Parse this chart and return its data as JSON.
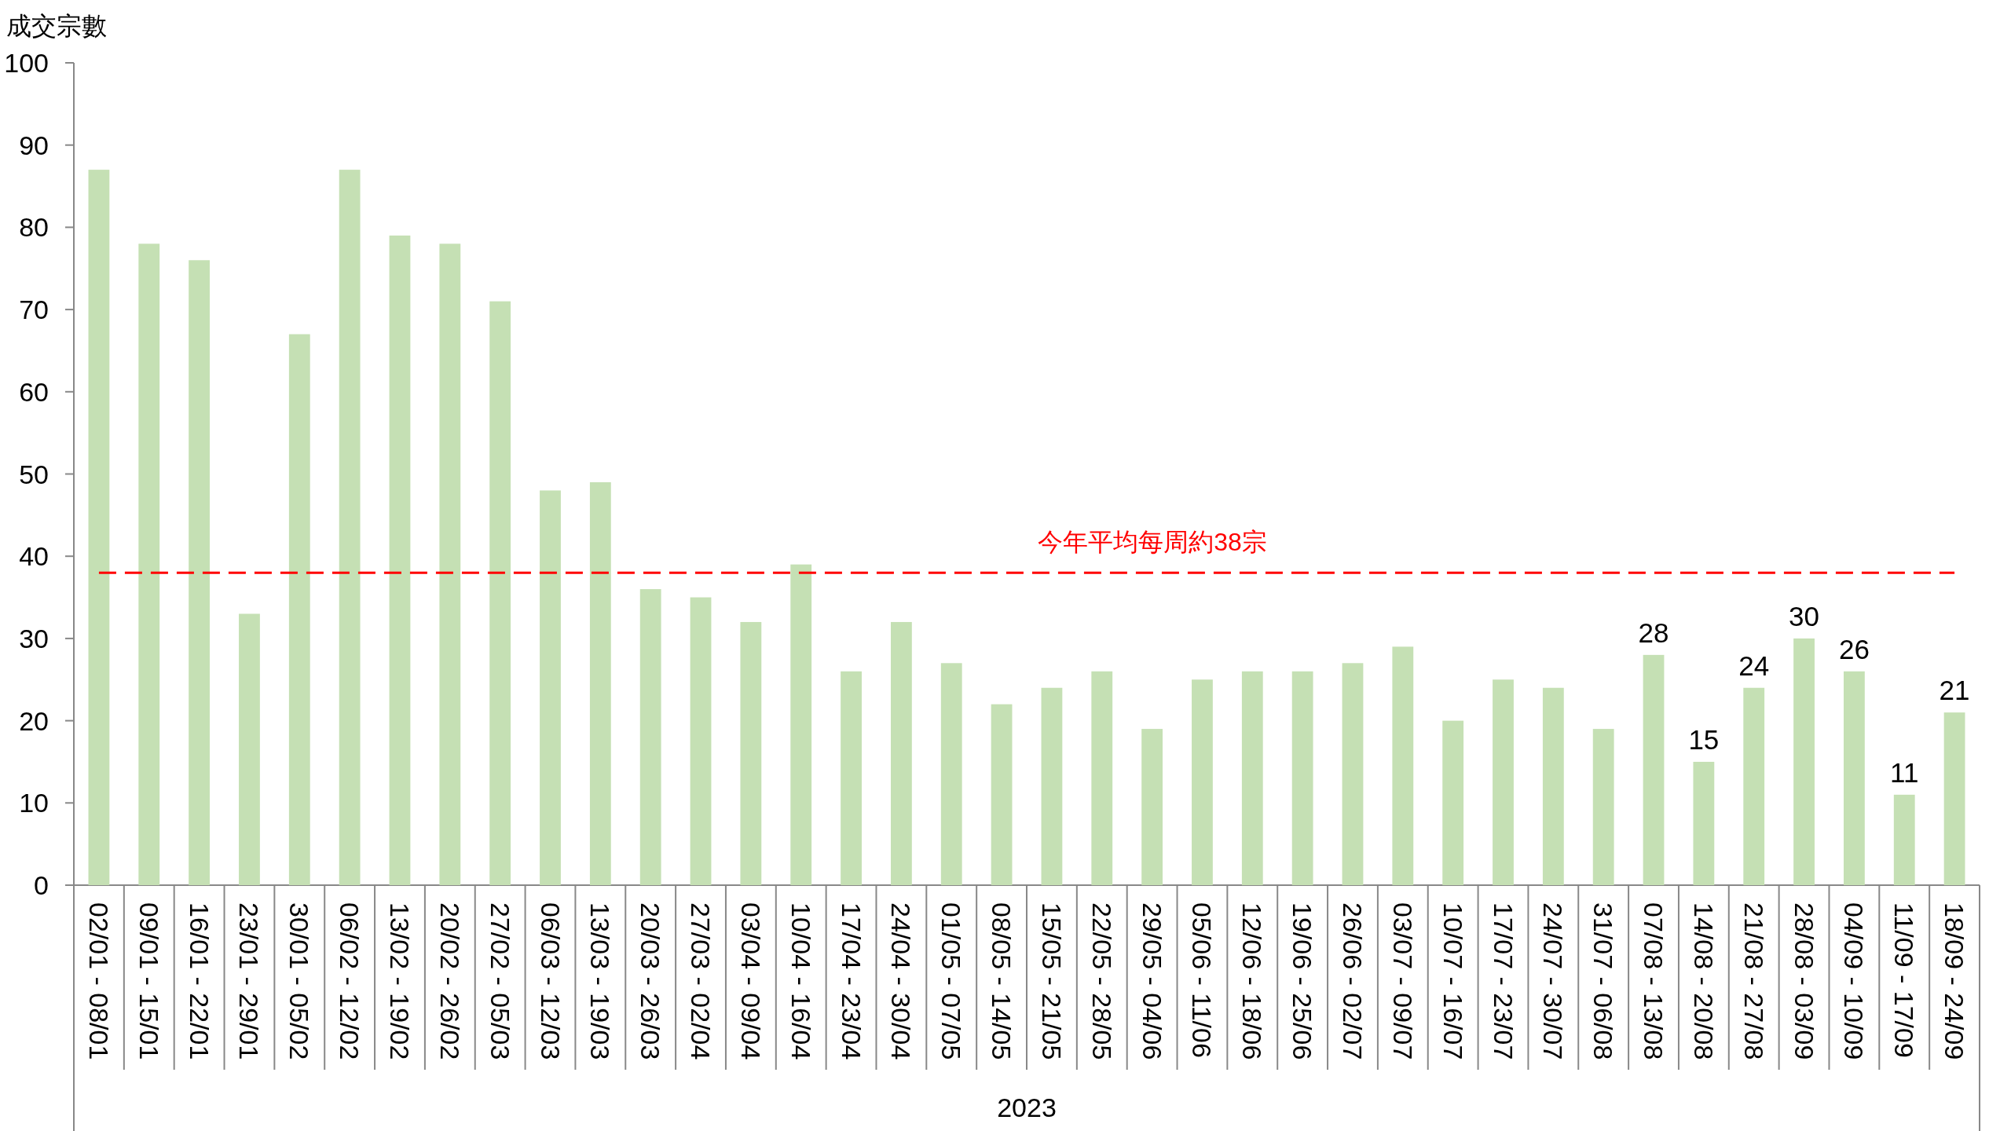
{
  "chart_data": {
    "type": "bar",
    "ylabel": "成交宗數",
    "xlabel": "2023",
    "categories": [
      "02/01 - 08/01",
      "09/01 - 15/01",
      "16/01 - 22/01",
      "23/01 - 29/01",
      "30/01 - 05/02",
      "06/02 - 12/02",
      "13/02 - 19/02",
      "20/02 - 26/02",
      "27/02 - 05/03",
      "06/03 - 12/03",
      "13/03 - 19/03",
      "20/03 - 26/03",
      "27/03 - 02/04",
      "03/04 - 09/04",
      "10/04 - 16/04",
      "17/04 - 23/04",
      "24/04 - 30/04",
      "01/05 - 07/05",
      "08/05 - 14/05",
      "15/05 - 21/05",
      "22/05 - 28/05",
      "29/05 - 04/06",
      "05/06 - 11/06",
      "12/06 - 18/06",
      "19/06 - 25/06",
      "26/06 - 02/07",
      "03/07 - 09/07",
      "10/07 - 16/07",
      "17/07 - 23/07",
      "24/07 - 30/07",
      "31/07 - 06/08",
      "07/08 - 13/08",
      "14/08 - 20/08",
      "21/08 - 27/08",
      "28/08 - 03/09",
      "04/09 - 10/09",
      "11/09 - 17/09",
      "18/09 - 24/09"
    ],
    "values": [
      87,
      78,
      76,
      33,
      67,
      87,
      79,
      78,
      71,
      48,
      49,
      36,
      35,
      32,
      39,
      26,
      32,
      27,
      22,
      24,
      26,
      19,
      25,
      26,
      26,
      27,
      29,
      20,
      25,
      24,
      19,
      28,
      15,
      24,
      30,
      26,
      11,
      21
    ],
    "color": "#c5e0b4",
    "value_labels": [
      null,
      null,
      null,
      null,
      null,
      null,
      null,
      null,
      null,
      null,
      null,
      null,
      null,
      null,
      null,
      null,
      null,
      null,
      null,
      null,
      null,
      null,
      null,
      null,
      null,
      null,
      null,
      null,
      null,
      null,
      null,
      "28",
      "15",
      "24",
      "30",
      "26",
      "11",
      "21"
    ],
    "ylim": [
      0,
      100
    ],
    "yticks": [
      0,
      10,
      20,
      30,
      40,
      50,
      60,
      70,
      80,
      90,
      100
    ],
    "ref_lines": [
      {
        "axis": "y",
        "value": 38,
        "label": "今年平均每周約38宗",
        "color": "#ff0000",
        "line_style": "dashed"
      }
    ]
  }
}
